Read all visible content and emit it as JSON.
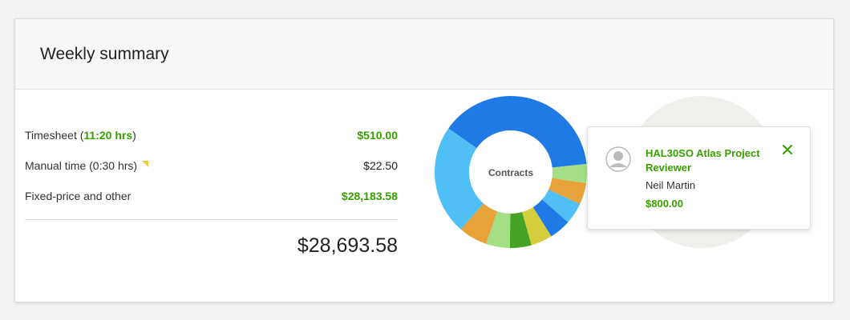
{
  "card": {
    "title": "Weekly summary"
  },
  "summary": {
    "rows": [
      {
        "label_prefix": "Timesheet (",
        "hours": "11:20 hrs",
        "label_suffix": ")",
        "amount": "$510.00"
      },
      {
        "label": "Manual time (0:30 hrs)",
        "amount": "$22.50"
      },
      {
        "label": "Fixed-price and other",
        "amount": "$28,183.58"
      }
    ],
    "total": "$28,693.58"
  },
  "chart_data": {
    "type": "pie",
    "center_label": "Contracts",
    "slices": [
      {
        "value": 38,
        "color": "#1f7ae6"
      },
      {
        "value": 4,
        "color": "#a4df85"
      },
      {
        "value": 4.5,
        "color": "#e8a23a"
      },
      {
        "value": 4.5,
        "color": "#4fbff5"
      },
      {
        "value": 4.5,
        "color": "#1f7ae6"
      },
      {
        "value": 4.5,
        "color": "#d4cd3c"
      },
      {
        "value": 4.5,
        "color": "#46a326"
      },
      {
        "value": 5,
        "color": "#a4df85"
      },
      {
        "value": 6,
        "color": "#e8a23a"
      },
      {
        "value": 23,
        "color": "#4fbff5"
      }
    ]
  },
  "popover": {
    "title": "HAL30SO Atlas Project Reviewer",
    "name": "Neil Martin",
    "amount": "$800.00",
    "icons": {
      "avatar": "user-avatar-icon",
      "close": "close-icon"
    }
  },
  "colors": {
    "accent_green": "#37a000",
    "flag_yellow": "#f5c842"
  }
}
